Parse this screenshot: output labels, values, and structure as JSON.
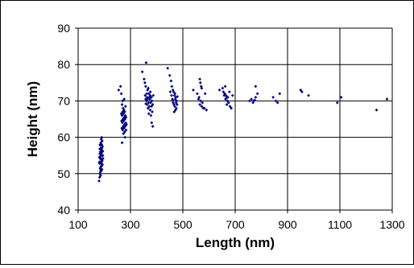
{
  "chart_data": {
    "type": "scatter",
    "title": "",
    "xlabel": "Length (nm)",
    "ylabel": "Height (nm)",
    "xlim": [
      100,
      1300
    ],
    "ylim": [
      40,
      90
    ],
    "xticks": [
      100,
      300,
      500,
      700,
      900,
      1100,
      1300
    ],
    "yticks": [
      40,
      50,
      60,
      70,
      80,
      90
    ],
    "grid": true,
    "legend": "none",
    "marker_color": "#000080",
    "series": [
      {
        "points": [
          [
            180,
            48
          ],
          [
            182,
            49
          ],
          [
            183,
            50
          ],
          [
            185,
            50.5
          ],
          [
            186,
            51
          ],
          [
            184,
            51.5
          ],
          [
            187,
            52
          ],
          [
            189,
            52
          ],
          [
            191,
            52.5
          ],
          [
            188,
            53
          ],
          [
            185,
            53
          ],
          [
            190,
            53.5
          ],
          [
            192,
            53.5
          ],
          [
            186,
            54
          ],
          [
            189,
            54
          ],
          [
            193,
            54
          ],
          [
            181,
            54.5
          ],
          [
            184,
            54.5
          ],
          [
            187,
            55
          ],
          [
            190,
            55
          ],
          [
            194,
            55
          ],
          [
            183,
            55.5
          ],
          [
            188,
            55.5
          ],
          [
            192,
            56
          ],
          [
            185,
            56
          ],
          [
            189,
            56.5
          ],
          [
            191,
            57
          ],
          [
            186,
            57
          ],
          [
            193,
            57.5
          ],
          [
            184,
            58
          ],
          [
            190,
            58
          ],
          [
            187,
            58.5
          ],
          [
            192,
            59
          ],
          [
            188,
            59.5
          ],
          [
            190,
            60
          ],
          [
            182,
            52.8
          ],
          [
            195,
            54.2
          ],
          [
            183,
            56.8
          ],
          [
            191,
            51.2
          ],
          [
            186,
            49.5
          ],
          [
            189,
            50.8
          ],
          [
            193,
            52.5
          ],
          [
            185,
            57.8
          ],
          [
            181,
            53.2
          ],
          [
            194,
            56.2
          ],
          [
            255,
            73
          ],
          [
            262,
            74
          ],
          [
            265,
            72
          ],
          [
            270,
            70
          ],
          [
            268,
            69
          ],
          [
            272,
            68
          ],
          [
            275,
            67.5
          ],
          [
            270,
            67
          ],
          [
            278,
            67
          ],
          [
            265,
            66.5
          ],
          [
            273,
            66.5
          ],
          [
            280,
            66
          ],
          [
            268,
            66
          ],
          [
            276,
            65.5
          ],
          [
            283,
            65.5
          ],
          [
            271,
            65
          ],
          [
            279,
            65
          ],
          [
            266,
            64.5
          ],
          [
            274,
            64.5
          ],
          [
            282,
            64
          ],
          [
            269,
            64
          ],
          [
            277,
            63.5
          ],
          [
            285,
            63.5
          ],
          [
            272,
            63
          ],
          [
            280,
            63
          ],
          [
            267,
            62.5
          ],
          [
            275,
            62.5
          ],
          [
            283,
            62
          ],
          [
            270,
            62
          ],
          [
            278,
            61.5
          ],
          [
            273,
            61
          ],
          [
            279,
            60
          ],
          [
            268,
            58.5
          ],
          [
            281,
            68.5
          ],
          [
            276,
            70.5
          ],
          [
            345,
            78
          ],
          [
            352,
            76
          ],
          [
            355,
            75
          ],
          [
            360,
            80.5
          ],
          [
            358,
            74
          ],
          [
            365,
            73
          ],
          [
            362,
            72
          ],
          [
            370,
            72
          ],
          [
            356,
            71.5
          ],
          [
            375,
            71.5
          ],
          [
            363,
            71
          ],
          [
            372,
            71
          ],
          [
            380,
            71
          ],
          [
            358,
            70.5
          ],
          [
            366,
            70.5
          ],
          [
            374,
            70.5
          ],
          [
            382,
            70
          ],
          [
            361,
            70
          ],
          [
            369,
            69.5
          ],
          [
            377,
            69.5
          ],
          [
            385,
            69
          ],
          [
            364,
            69
          ],
          [
            372,
            68.5
          ],
          [
            380,
            68.5
          ],
          [
            367,
            68
          ],
          [
            375,
            67.5
          ],
          [
            383,
            67
          ],
          [
            370,
            66.5
          ],
          [
            378,
            66
          ],
          [
            381,
            64
          ],
          [
            385,
            63
          ],
          [
            368,
            73.5
          ],
          [
            376,
            72.5
          ],
          [
            387,
            71.5
          ],
          [
            359,
            69.2
          ],
          [
            442,
            79
          ],
          [
            450,
            77
          ],
          [
            455,
            75.5
          ],
          [
            458,
            74
          ],
          [
            462,
            73
          ],
          [
            452,
            72.5
          ],
          [
            465,
            72.5
          ],
          [
            470,
            72
          ],
          [
            457,
            71.5
          ],
          [
            468,
            71.5
          ],
          [
            473,
            71
          ],
          [
            460,
            70.5
          ],
          [
            471,
            70.5
          ],
          [
            476,
            70
          ],
          [
            463,
            69.5
          ],
          [
            474,
            69.5
          ],
          [
            466,
            69
          ],
          [
            478,
            69
          ],
          [
            469,
            68.5
          ],
          [
            475,
            68
          ],
          [
            472,
            67.5
          ],
          [
            467,
            67
          ],
          [
            461,
            70.2
          ],
          [
            479,
            71.2
          ],
          [
            540,
            73
          ],
          [
            555,
            72
          ],
          [
            562,
            71
          ],
          [
            565,
            76
          ],
          [
            567,
            75
          ],
          [
            570,
            74
          ],
          [
            572,
            73.5
          ],
          [
            560,
            70.5
          ],
          [
            568,
            70
          ],
          [
            575,
            69.5
          ],
          [
            565,
            69
          ],
          [
            572,
            68.5
          ],
          [
            578,
            68
          ],
          [
            582,
            68
          ],
          [
            590,
            67.5
          ],
          [
            585,
            72
          ],
          [
            640,
            73
          ],
          [
            652,
            73.5
          ],
          [
            655,
            72.5
          ],
          [
            660,
            72
          ],
          [
            658,
            71.5
          ],
          [
            665,
            71.5
          ],
          [
            668,
            71
          ],
          [
            672,
            71
          ],
          [
            663,
            70.5
          ],
          [
            670,
            70
          ],
          [
            675,
            69.5
          ],
          [
            668,
            69
          ],
          [
            680,
            68.5
          ],
          [
            685,
            68
          ],
          [
            690,
            71.5
          ],
          [
            662,
            74
          ],
          [
            678,
            72.5
          ],
          [
            755,
            70
          ],
          [
            762,
            70.5
          ],
          [
            770,
            70
          ],
          [
            778,
            71
          ],
          [
            785,
            72
          ],
          [
            778,
            74
          ],
          [
            768,
            69.5
          ],
          [
            775,
            70.2
          ],
          [
            845,
            71
          ],
          [
            855,
            70
          ],
          [
            862,
            69.5
          ],
          [
            870,
            72
          ],
          [
            950,
            73
          ],
          [
            955,
            72.5
          ],
          [
            980,
            71.5
          ],
          [
            1090,
            69.5
          ],
          [
            1105,
            71
          ],
          [
            1240,
            67.5
          ],
          [
            1280,
            70.5
          ]
        ]
      }
    ]
  }
}
